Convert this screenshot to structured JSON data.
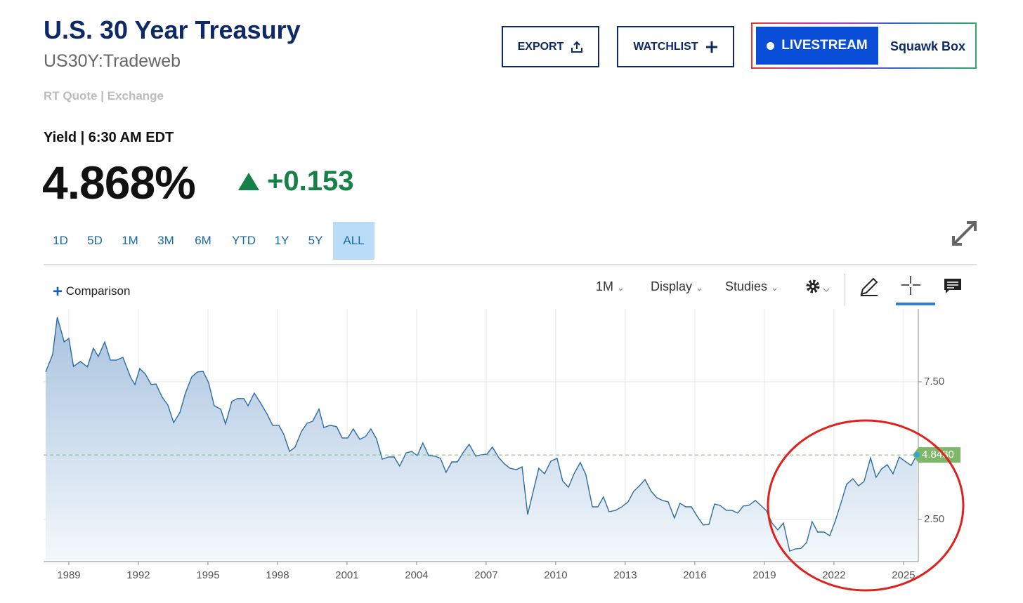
{
  "header": {
    "title": "U.S. 30 Year Treasury",
    "symbol": "US30Y:Tradeweb",
    "quote_source": "RT Quote | Exchange",
    "yield_time": "Yield | 6:30 AM EDT",
    "price": "4.868%",
    "change": "+0.153"
  },
  "buttons": {
    "export": "EXPORT",
    "watchlist": "WATCHLIST",
    "livestream": "LIVESTREAM",
    "show": "Squawk Box"
  },
  "range_buttons": [
    "1D",
    "5D",
    "1M",
    "3M",
    "6M",
    "YTD",
    "1Y",
    "5Y",
    "ALL"
  ],
  "selected_range": "ALL",
  "toolbar": {
    "comparison": "Comparison",
    "interval": "1M",
    "display": "Display",
    "studies": "Studies"
  },
  "chart_data": {
    "type": "area",
    "color": "#2b6ca3",
    "grid": true,
    "x": [
      1988.0,
      1988.3,
      1988.5,
      1988.8,
      1989.0,
      1989.2,
      1989.5,
      1989.8,
      1990.06,
      1990.27,
      1990.55,
      1990.79,
      1991.06,
      1991.33,
      1991.67,
      1991.85,
      1992.06,
      1992.3,
      1992.55,
      1992.76,
      1993.03,
      1993.27,
      1993.52,
      1993.79,
      1994.03,
      1994.3,
      1994.55,
      1994.79,
      1995.03,
      1995.27,
      1995.55,
      1995.76,
      1996.03,
      1996.27,
      1996.55,
      1996.73,
      1997.0,
      1997.27,
      1997.55,
      1997.79,
      1998.06,
      1998.27,
      1998.52,
      1998.76,
      1999.03,
      1999.27,
      1999.52,
      1999.79,
      2000.0,
      2000.27,
      2000.55,
      2000.79,
      2001.03,
      2001.27,
      2001.55,
      2001.79,
      2002.03,
      2002.27,
      2002.52,
      2002.79,
      2003.03,
      2003.27,
      2003.55,
      2003.79,
      2004.03,
      2004.27,
      2004.52,
      2004.79,
      2005.03,
      2005.27,
      2005.52,
      2005.76,
      2006.0,
      2006.27,
      2006.55,
      2006.79,
      2007.03,
      2007.27,
      2007.55,
      2007.79,
      2008.03,
      2008.3,
      2008.55,
      2008.79,
      2009.03,
      2009.27,
      2009.52,
      2009.79,
      2010.06,
      2010.3,
      2010.55,
      2010.79,
      2011.06,
      2011.3,
      2011.58,
      2011.82,
      2012.06,
      2012.3,
      2012.58,
      2012.85,
      2013.12,
      2013.36,
      2013.61,
      2013.85,
      2014.12,
      2014.36,
      2014.61,
      2014.85,
      2015.12,
      2015.36,
      2015.61,
      2015.85,
      2016.09,
      2016.36,
      2016.61,
      2016.85,
      2017.09,
      2017.36,
      2017.61,
      2017.85,
      2018.09,
      2018.33,
      2018.61,
      2018.85,
      2019.09,
      2019.33,
      2019.58,
      2019.82,
      2020.09,
      2020.33,
      2020.58,
      2020.82,
      2021.06,
      2021.3,
      2021.58,
      2021.82,
      2022.06,
      2022.3,
      2022.55,
      2022.82,
      2023.06,
      2023.3,
      2023.58,
      2023.82,
      2024.06,
      2024.3,
      2024.55,
      2024.82,
      2025.06,
      2025.33,
      2025.58
    ],
    "values": [
      7.86,
      8.49,
      9.85,
      8.95,
      9.08,
      8.06,
      8.24,
      8.04,
      8.72,
      8.42,
      8.95,
      8.29,
      8.29,
      8.39,
      7.65,
      7.4,
      7.98,
      7.78,
      7.4,
      7.42,
      6.94,
      6.66,
      6.02,
      6.38,
      7.09,
      7.68,
      7.86,
      7.88,
      7.47,
      6.63,
      6.51,
      5.97,
      6.79,
      6.89,
      6.89,
      6.63,
      7.09,
      6.73,
      6.33,
      5.92,
      5.92,
      5.59,
      4.97,
      5.13,
      5.69,
      5.99,
      6.07,
      6.51,
      5.84,
      5.92,
      5.87,
      5.46,
      5.46,
      5.79,
      5.41,
      5.51,
      5.79,
      5.43,
      4.69,
      4.77,
      4.77,
      4.44,
      4.92,
      4.97,
      4.82,
      5.28,
      4.82,
      4.8,
      4.72,
      4.21,
      4.59,
      4.59,
      4.92,
      5.23,
      4.8,
      4.85,
      4.87,
      5.13,
      4.74,
      4.52,
      4.36,
      4.31,
      4.41,
      2.68,
      3.52,
      4.36,
      4.16,
      4.62,
      4.72,
      3.9,
      3.67,
      4.16,
      4.57,
      4.13,
      2.96,
      2.96,
      3.32,
      2.78,
      2.83,
      2.96,
      3.14,
      3.52,
      3.72,
      3.95,
      3.52,
      3.29,
      3.19,
      3.14,
      2.55,
      3.09,
      2.96,
      2.96,
      2.63,
      2.3,
      2.32,
      3.06,
      3.01,
      2.83,
      2.83,
      2.73,
      2.99,
      3.01,
      3.19,
      3.01,
      2.81,
      2.37,
      2.12,
      2.37,
      1.35,
      1.43,
      1.45,
      1.66,
      2.42,
      2.04,
      2.04,
      1.91,
      2.45,
      3.09,
      3.78,
      3.98,
      3.72,
      3.88,
      4.74,
      4.03,
      4.34,
      4.49,
      4.16,
      4.77,
      4.62,
      4.46,
      4.85
    ],
    "xlim": [
      1987.91,
      2025.64
    ],
    "xticks": [
      1989,
      1992,
      1995,
      1998,
      2001,
      2004,
      2007,
      2010,
      2013,
      2016,
      2019,
      2022,
      2025
    ],
    "ylim": [
      0.97,
      10.15
    ],
    "yticks": [
      {
        "value": 2.5,
        "label": "2.50"
      },
      {
        "value": 7.5,
        "label": "7.50"
      }
    ],
    "price_line": {
      "value": 4.843,
      "label": "4.8430",
      "color": "#7db86a"
    }
  }
}
